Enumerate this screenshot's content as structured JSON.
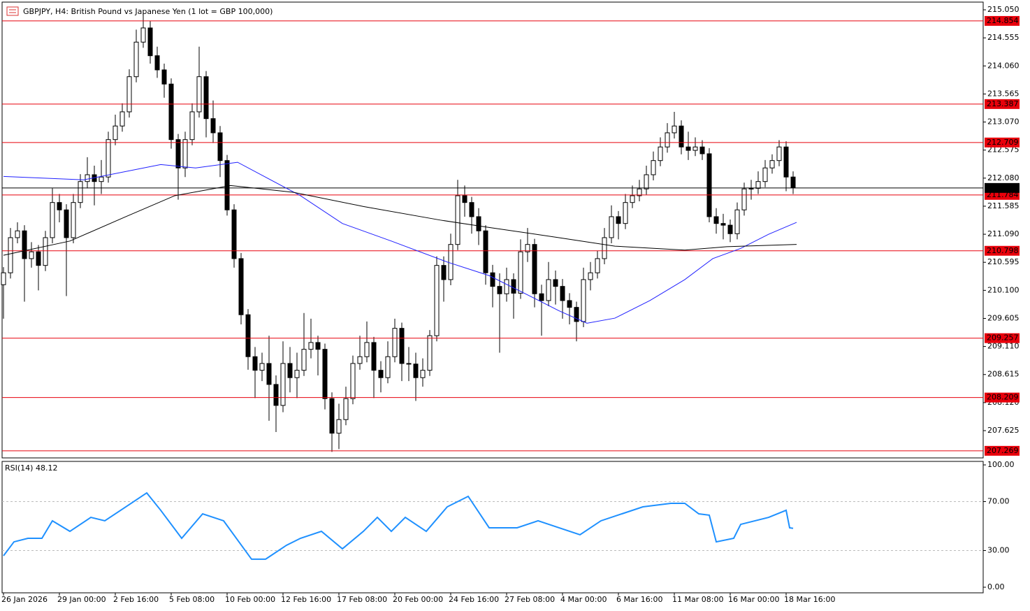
{
  "chart_data": [
    {
      "type": "candlestick",
      "title": "GBPJPY, H4:  British Pound vs Japanese Yen (1 lot = GBP 100,000)",
      "ylim": [
        207.144,
        215.186
      ],
      "yticks": [
        {
          "value": 215.05,
          "label": "215.050"
        },
        214.555,
        {
          "value": 214.06,
          "label": "214.060"
        },
        213.565,
        {
          "value": 213.07,
          "label": "213.070"
        },
        212.575,
        {
          "value": 212.08,
          "label": "212.080"
        },
        211.585,
        {
          "value": 211.09,
          "label": "211.090"
        },
        210.595,
        {
          "value": 210.1,
          "label": "210.100"
        },
        209.605,
        {
          "value": 209.11,
          "label": "209.110"
        },
        208.615,
        {
          "value": 208.12,
          "label": "208.120"
        },
        207.625
      ],
      "levels": [
        214.854,
        213.387,
        212.709,
        211.784,
        210.798,
        209.257,
        208.209,
        207.269
      ],
      "level_color": "#e8000b",
      "current_price": 211.907,
      "candles": [
        [
          210.2,
          210.51,
          209.6,
          210.41
        ],
        [
          210.41,
          211.2,
          210.31,
          211.03
        ],
        [
          211.03,
          211.3,
          210.93,
          211.15
        ],
        [
          211.15,
          211.25,
          209.9,
          210.66
        ],
        [
          210.66,
          210.95,
          210.5,
          210.78
        ],
        [
          210.78,
          210.9,
          210.1,
          210.54
        ],
        [
          210.54,
          211.15,
          210.44,
          211.03
        ],
        [
          211.03,
          211.9,
          210.93,
          211.65
        ],
        [
          211.65,
          211.8,
          211.3,
          211.52
        ],
        [
          211.52,
          211.62,
          210.0,
          211.03
        ],
        [
          211.03,
          211.8,
          210.93,
          211.65
        ],
        [
          211.65,
          212.15,
          211.55,
          212.02
        ],
        [
          212.02,
          212.45,
          211.9,
          212.14
        ],
        [
          212.14,
          212.3,
          211.6,
          212.02
        ],
        [
          212.02,
          212.4,
          211.8,
          212.1
        ],
        [
          212.1,
          212.9,
          212.0,
          212.76
        ],
        [
          212.76,
          213.2,
          212.66,
          213.0
        ],
        [
          213.0,
          213.4,
          212.9,
          213.25
        ],
        [
          213.25,
          214.0,
          213.15,
          213.87
        ],
        [
          213.87,
          214.7,
          213.77,
          214.48
        ],
        [
          214.48,
          215.0,
          214.38,
          214.73
        ],
        [
          214.73,
          214.85,
          214.1,
          214.24
        ],
        [
          214.24,
          214.4,
          213.85,
          213.99
        ],
        [
          213.99,
          214.1,
          213.5,
          213.74
        ],
        [
          213.74,
          213.84,
          212.6,
          212.76
        ],
        [
          212.76,
          212.86,
          211.7,
          212.26
        ],
        [
          212.26,
          212.9,
          212.1,
          212.76
        ],
        [
          212.76,
          213.4,
          212.66,
          213.25
        ],
        [
          213.25,
          214.4,
          213.15,
          213.87
        ],
        [
          213.87,
          213.97,
          212.8,
          213.13
        ],
        [
          213.13,
          213.45,
          212.7,
          212.88
        ],
        [
          212.88,
          213.0,
          212.1,
          212.39
        ],
        [
          212.39,
          212.49,
          211.42,
          211.52
        ],
        [
          211.52,
          211.62,
          210.5,
          210.66
        ],
        [
          210.66,
          210.76,
          209.5,
          209.67
        ],
        [
          209.67,
          209.77,
          208.7,
          208.93
        ],
        [
          208.93,
          209.1,
          208.2,
          208.69
        ],
        [
          208.69,
          209.0,
          208.5,
          208.81
        ],
        [
          208.81,
          209.3,
          207.8,
          208.44
        ],
        [
          208.44,
          208.6,
          207.6,
          208.07
        ],
        [
          208.07,
          209.2,
          207.95,
          208.81
        ],
        [
          208.81,
          209.1,
          208.3,
          208.56
        ],
        [
          208.56,
          209.0,
          208.2,
          208.69
        ],
        [
          208.69,
          209.7,
          208.59,
          209.06
        ],
        [
          209.06,
          209.6,
          208.9,
          209.18
        ],
        [
          209.18,
          209.3,
          208.6,
          209.06
        ],
        [
          209.06,
          209.16,
          208.0,
          208.19
        ],
        [
          208.19,
          208.3,
          207.25,
          207.58
        ],
        [
          207.58,
          208.1,
          207.3,
          207.82
        ],
        [
          207.82,
          208.4,
          207.72,
          208.19
        ],
        [
          208.19,
          208.95,
          208.09,
          208.81
        ],
        [
          208.81,
          209.3,
          208.7,
          208.93
        ],
        [
          208.93,
          209.55,
          208.83,
          209.18
        ],
        [
          209.18,
          209.28,
          208.2,
          208.69
        ],
        [
          208.69,
          208.85,
          208.3,
          208.56
        ],
        [
          208.56,
          209.2,
          208.46,
          208.93
        ],
        [
          208.93,
          209.6,
          208.83,
          209.43
        ],
        [
          209.43,
          209.53,
          208.5,
          208.81
        ],
        [
          208.81,
          209.1,
          208.5,
          208.8
        ],
        [
          208.8,
          209.0,
          208.15,
          208.56
        ],
        [
          208.56,
          208.9,
          208.4,
          208.69
        ],
        [
          208.69,
          209.4,
          208.59,
          209.3
        ],
        [
          209.3,
          210.7,
          209.2,
          210.54
        ],
        [
          210.54,
          210.7,
          209.9,
          210.29
        ],
        [
          210.29,
          211.1,
          210.19,
          210.91
        ],
        [
          210.91,
          212.05,
          210.81,
          211.77
        ],
        [
          211.77,
          211.95,
          211.4,
          211.65
        ],
        [
          211.65,
          211.75,
          211.1,
          211.4
        ],
        [
          211.4,
          211.55,
          210.9,
          211.15
        ],
        [
          211.15,
          211.25,
          210.2,
          210.41
        ],
        [
          210.41,
          210.55,
          209.8,
          210.17
        ],
        [
          210.17,
          210.4,
          209.0,
          210.04
        ],
        [
          210.04,
          210.5,
          209.9,
          210.29
        ],
        [
          210.29,
          210.4,
          209.6,
          210.05
        ],
        [
          210.05,
          211.0,
          209.95,
          210.78
        ],
        [
          210.78,
          211.2,
          210.6,
          210.91
        ],
        [
          210.91,
          211.01,
          209.8,
          210.04
        ],
        [
          210.04,
          210.2,
          209.3,
          209.92
        ],
        [
          209.92,
          210.6,
          209.82,
          210.29
        ],
        [
          210.29,
          210.45,
          209.85,
          210.17
        ],
        [
          210.17,
          210.3,
          209.6,
          209.92
        ],
        [
          209.92,
          210.05,
          209.5,
          209.8
        ],
        [
          209.8,
          209.9,
          209.2,
          209.55
        ],
        [
          209.55,
          210.5,
          209.45,
          210.29
        ],
        [
          210.29,
          210.6,
          210.1,
          210.41
        ],
        [
          210.41,
          210.8,
          210.31,
          210.66
        ],
        [
          210.66,
          211.2,
          210.56,
          211.03
        ],
        [
          211.03,
          211.6,
          210.93,
          211.4
        ],
        [
          211.4,
          211.5,
          211.0,
          211.28
        ],
        [
          211.28,
          211.8,
          211.18,
          211.65
        ],
        [
          211.65,
          211.95,
          211.55,
          211.77
        ],
        [
          211.77,
          212.05,
          211.67,
          211.89
        ],
        [
          211.89,
          212.3,
          211.79,
          212.14
        ],
        [
          212.14,
          212.55,
          212.04,
          212.39
        ],
        [
          212.39,
          212.8,
          212.29,
          212.63
        ],
        [
          212.63,
          213.05,
          212.53,
          212.88
        ],
        [
          212.88,
          213.25,
          212.78,
          213.0
        ],
        [
          213.0,
          213.1,
          212.5,
          212.63
        ],
        [
          212.63,
          212.9,
          212.4,
          212.57
        ],
        [
          212.57,
          212.8,
          212.47,
          212.63
        ],
        [
          212.63,
          212.75,
          212.4,
          212.51
        ],
        [
          212.51,
          212.61,
          211.3,
          211.4
        ],
        [
          211.4,
          211.55,
          211.1,
          211.28
        ],
        [
          211.28,
          211.45,
          211.0,
          211.25
        ],
        [
          211.25,
          211.35,
          210.95,
          211.1
        ],
        [
          211.1,
          211.65,
          211.0,
          211.52
        ],
        [
          211.52,
          212.0,
          211.42,
          211.89
        ],
        [
          211.89,
          212.05,
          211.7,
          211.9
        ],
        [
          211.9,
          212.2,
          211.8,
          212.02
        ],
        [
          212.02,
          212.4,
          211.92,
          212.26
        ],
        [
          212.26,
          212.5,
          212.16,
          212.39
        ],
        [
          212.39,
          212.75,
          212.29,
          212.63
        ],
        [
          212.63,
          212.73,
          211.85,
          212.1
        ],
        [
          212.1,
          212.2,
          211.8,
          211.91
        ]
      ],
      "series": [
        {
          "color": "#2020ff",
          "x": [
            0,
            11.5,
            22.5,
            27.5,
            33.5,
            42.5,
            48.5,
            55.5,
            63.5,
            69.5,
            75.5,
            79.5,
            83.5,
            87.5,
            92.5,
            97.5,
            101.5,
            105.5,
            109.5,
            113.5
          ],
          "values": [
            212.11,
            212.05,
            212.32,
            212.26,
            212.36,
            211.77,
            211.28,
            210.97,
            210.6,
            210.36,
            209.99,
            209.74,
            209.52,
            209.61,
            209.92,
            210.29,
            210.66,
            210.84,
            211.09,
            211.3
          ]
        },
        {
          "color": "#000000",
          "x": [
            0,
            9.5,
            17.5,
            24.5,
            32.5,
            41.5,
            51.5,
            62.5,
            69.5,
            79.5,
            87.5,
            97.5,
            103.5,
            113.5
          ],
          "values": [
            210.72,
            210.97,
            211.4,
            211.77,
            211.95,
            211.83,
            211.58,
            211.34,
            211.21,
            211.03,
            210.88,
            210.81,
            210.87,
            210.91
          ]
        }
      ]
    },
    {
      "type": "line",
      "title": "RSI(14) 48.12",
      "ylim": [
        -4.57,
        102.86
      ],
      "yticks": [
        {
          "value": 100,
          "label": "100.00"
        },
        {
          "value": 70,
          "label": "70.00"
        },
        {
          "value": 30,
          "label": "30.00"
        },
        {
          "value": 0,
          "label": "0.00"
        }
      ],
      "levels": [
        70,
        30
      ],
      "xticks": [
        {
          "value": 0,
          "label": "26 Jan 2026"
        },
        {
          "value": 8,
          "label": "29 Jan 00:00"
        },
        {
          "value": 16,
          "label": "2 Feb 16:00"
        },
        {
          "value": 24,
          "label": "5 Feb 08:00"
        },
        {
          "value": 32,
          "label": "10 Feb 00:00"
        },
        {
          "value": 40,
          "label": "12 Feb 16:00"
        },
        {
          "value": 48,
          "label": "17 Feb 08:00"
        },
        {
          "value": 56,
          "label": "20 Feb 00:00"
        },
        {
          "value": 64,
          "label": "24 Feb 16:00"
        },
        {
          "value": 72,
          "label": "27 Feb 08:00"
        },
        {
          "value": 80,
          "label": "4 Mar 00:00"
        },
        {
          "value": 88,
          "label": "6 Mar 16:00"
        },
        {
          "value": 96,
          "label": "11 Mar 08:00"
        },
        {
          "value": 104,
          "label": "16 Mar 00:00"
        },
        {
          "value": 112,
          "label": "18 Mar 16:00"
        }
      ],
      "series": [
        {
          "color": "#1e90ff",
          "x": [
            0,
            1.5,
            3.5,
            5.5,
            7,
            9.5,
            12.5,
            14.5,
            17.5,
            20.5,
            22.5,
            25.5,
            28.5,
            31.5,
            35.5,
            37.5,
            40.5,
            42.5,
            45.5,
            48.5,
            51.5,
            53.5,
            55.5,
            57.5,
            60.5,
            63.5,
            66.5,
            69.5,
            73.5,
            76.5,
            79.5,
            82.5,
            85.5,
            88.5,
            91.5,
            95.5,
            97.5,
            99.5,
            101,
            102,
            104.5,
            105.5,
            109.5,
            112,
            112.5,
            113
          ],
          "values": [
            25.7,
            37.1,
            40,
            40,
            54.3,
            45.7,
            57.1,
            54.3,
            65.7,
            77.1,
            62.9,
            40,
            60,
            54.3,
            22.9,
            22.9,
            34.3,
            40,
            45.7,
            31.4,
            45.7,
            57.1,
            45.7,
            57.1,
            45.7,
            65.7,
            74.3,
            48.6,
            48.6,
            54.3,
            48.6,
            42.9,
            54.3,
            60,
            65.7,
            68.6,
            68.6,
            60,
            58.9,
            37.1,
            40,
            51.4,
            57.1,
            62.9,
            48.6,
            48.12
          ]
        }
      ]
    }
  ]
}
